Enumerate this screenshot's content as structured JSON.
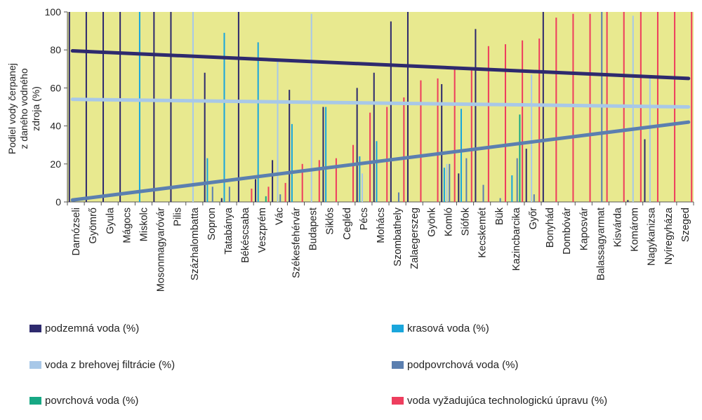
{
  "chart_data": {
    "type": "bar",
    "ylabel": "Podiel vody čerpanej z daného vodného zdroja (%)",
    "ylim": [
      0,
      100
    ],
    "yticks": [
      0,
      20,
      40,
      60,
      80,
      100
    ],
    "grid": false,
    "background_color": "#e8e98f",
    "legend_position": "bottom",
    "categories": [
      "Darnózseli",
      "Gyömrő",
      "Gyula",
      "Mágocs",
      "Miskolc",
      "Mosonmagyaróvár",
      "Pilis",
      "Százhalombatta",
      "Sopron",
      "Tatabánya",
      "Békéscsaba",
      "Veszprém",
      "Vác",
      "Székesfehérvár",
      "Budapest",
      "Siklós",
      "Cegléd",
      "Pécs",
      "Mohács",
      "Szombathely",
      "Zalaegerszeg",
      "Gyönk",
      "Komló",
      "Siófok",
      "Kecskemét",
      "Bük",
      "Kazincbarcika",
      "Győr",
      "Bonyhád",
      "Dombóvár",
      "Kaposvár",
      "Balassagyarmat",
      "Kisvárda",
      "Komárom",
      "Nagykanizsa",
      "Nyíregyháza",
      "Szeged"
    ],
    "series": [
      {
        "name": "podzemná voda (%)",
        "color": "#2e2a6e",
        "values": [
          100,
          100,
          100,
          100,
          0,
          100,
          100,
          0,
          68,
          2,
          100,
          12,
          22,
          59,
          0,
          50,
          0,
          60,
          68,
          95,
          100,
          0,
          62,
          15,
          91,
          0,
          0,
          28,
          100,
          0,
          0,
          0,
          0,
          1,
          33,
          0,
          0
        ]
      },
      {
        "name": "krasová voda (%)",
        "color": "#1aa6dc",
        "values": [
          0,
          0,
          0,
          0,
          100,
          0,
          0,
          0,
          23,
          89,
          0,
          84,
          0,
          41,
          0,
          50,
          0,
          24,
          32,
          0,
          0,
          0,
          18,
          49,
          0,
          0,
          14,
          0,
          0,
          0,
          0,
          0,
          0,
          0,
          0,
          0,
          0
        ]
      },
      {
        "name": "voda z brehovej filtrácie (%)",
        "color": "#a8c8e8",
        "values": [
          0,
          0,
          0,
          0,
          0,
          0,
          0,
          100,
          0,
          0,
          0,
          0,
          74,
          0,
          99,
          0,
          0,
          15,
          0,
          0,
          0,
          0,
          20,
          0,
          0,
          0,
          0,
          67,
          0,
          0,
          0,
          0,
          0,
          98,
          66,
          0,
          0
        ]
      },
      {
        "name": "podpovrchová voda (%)",
        "color": "#5b7fb0",
        "values": [
          0,
          0,
          0,
          0,
          0,
          0,
          0,
          0,
          8,
          8,
          0,
          0,
          4,
          0,
          0,
          0,
          0,
          0,
          0,
          5,
          0,
          0,
          20,
          23,
          9,
          2,
          23,
          4,
          0,
          0,
          0,
          100,
          0,
          0,
          0,
          0,
          0
        ]
      },
      {
        "name": "povrchová voda (%)",
        "color": "#17a884",
        "values": [
          0,
          0,
          0,
          0,
          0,
          0,
          0,
          0,
          0,
          0,
          0,
          3,
          0,
          0,
          0,
          0,
          0,
          0,
          0,
          0,
          0,
          0,
          0,
          0,
          0,
          0,
          46,
          0,
          0,
          0,
          0,
          0,
          0,
          0,
          0,
          0,
          0
        ]
      },
      {
        "name": "voda vyžadujúca technologickú úpravu (%)",
        "color": "#ee3e5e",
        "values": [
          0,
          0,
          0,
          0,
          0,
          0,
          0,
          0,
          0,
          0,
          7,
          8,
          10,
          20,
          22,
          23,
          30,
          47,
          50,
          55,
          64,
          65,
          70,
          70,
          82,
          83,
          85,
          86,
          97,
          99,
          99,
          100,
          100,
          100,
          100,
          100,
          100
        ]
      }
    ],
    "trendlines": [
      {
        "series": "podzemná voda (%)",
        "color": "#2e2a6e",
        "start": 79.5,
        "end": 65
      },
      {
        "series": "voda z brehovej filtrácie (%)",
        "color": "#a8c8e8",
        "start": 54,
        "end": 50
      },
      {
        "series": "podpovrchová voda (%)",
        "color": "#5b7fb0",
        "start": 1,
        "end": 42
      }
    ]
  }
}
